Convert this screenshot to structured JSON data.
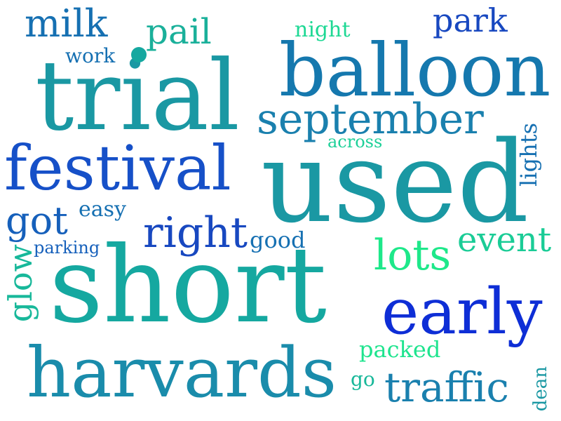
{
  "words": {
    "short": "short",
    "used": "used",
    "trial": "trial",
    "balloon": "balloon",
    "harvards": "harvards",
    "festival": "festival",
    "early": "early",
    "september": "september",
    "right": "right",
    "milk": "milk",
    "pail": "pail",
    "park": "park",
    "got": "got",
    "lots": "lots",
    "event": "event",
    "traffic": "traffic",
    "packed": "packed",
    "go": "go",
    "good": "good",
    "easy": "easy",
    "parking": "parking",
    "night": "night",
    "work": "work",
    "across": "across",
    "glow": "glow",
    "lights": "lights",
    "dean": "dean"
  },
  "colors": {
    "short": "#15a8a0",
    "used": "#1a98a3",
    "trial": "#1a98a3",
    "balloon": "#1578ae",
    "harvards": "#1a8cab",
    "festival": "#1650c8",
    "early": "#0e2ed6",
    "september": "#1a80ae",
    "right": "#1848c0",
    "milk": "#1670b2",
    "pail": "#1ab09a",
    "park": "#1848c0",
    "got": "#1660bb",
    "lots": "#1ee88a",
    "event": "#1acc96",
    "traffic": "#1a80ae",
    "packed": "#1ee48e",
    "go": "#18b89a",
    "good": "#1670b2",
    "easy": "#1670b2",
    "parking": "#1660bb",
    "night": "#1ed894",
    "work": "#1670b2",
    "across": "#1ed098",
    "glow": "#18b89a",
    "lights": "#1670b2",
    "dean": "#1a98a3",
    "dot": "#15a8a0"
  }
}
